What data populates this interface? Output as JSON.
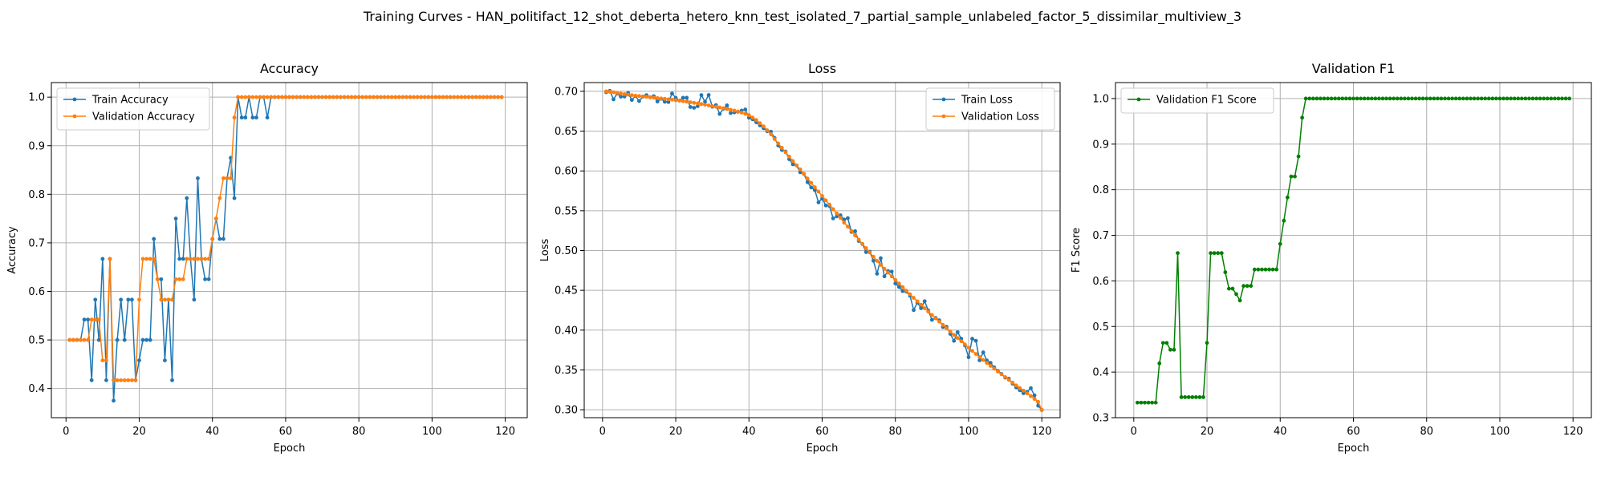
{
  "suptitle": "Training Curves - HAN_politifact_12_shot_deberta_hetero_knn_test_isolated_7_partial_sample_unlabeled_factor_5_dissimilar_multiview_3",
  "colors": {
    "blue": "#1f77b4",
    "orange": "#ff7f0e",
    "green": "#008000",
    "grid": "#b0b0b0"
  },
  "chart_data": [
    {
      "type": "line",
      "title": "Accuracy",
      "xlabel": "Epoch",
      "ylabel": "Accuracy",
      "xlim": [
        -4,
        126
      ],
      "ylim": [
        0.34,
        1.03
      ],
      "xticks": [
        0,
        20,
        40,
        60,
        80,
        100,
        120
      ],
      "yticks": [
        0.4,
        0.5,
        0.6,
        0.7,
        0.8,
        0.9,
        1.0
      ],
      "ytick_format": 1,
      "grid": true,
      "legend": "upper-left",
      "series": [
        {
          "name": "Train Accuracy",
          "color": "#1f77b4",
          "x_start": 1,
          "values": [
            0.5,
            0.5,
            0.5,
            0.5,
            0.542,
            0.542,
            0.417,
            0.583,
            0.5,
            0.667,
            0.417,
            0.667,
            0.375,
            0.5,
            0.583,
            0.5,
            0.583,
            0.583,
            0.417,
            0.458,
            0.5,
            0.5,
            0.5,
            0.708,
            0.625,
            0.625,
            0.458,
            0.583,
            0.417,
            0.75,
            0.667,
            0.667,
            0.792,
            0.667,
            0.583,
            0.833,
            0.667,
            0.625,
            0.625,
            0.708,
            0.75,
            0.708,
            0.708,
            0.833,
            0.875,
            0.792,
            1.0,
            0.958,
            0.958,
            1.0,
            0.958,
            0.958,
            1.0,
            1.0,
            0.958,
            1.0,
            1.0,
            1.0,
            1.0,
            1.0,
            1.0,
            1.0,
            1.0,
            1.0,
            1.0,
            1.0,
            1.0,
            1.0,
            1.0,
            1.0,
            1.0,
            1.0,
            1.0,
            1.0,
            1.0,
            1.0,
            1.0,
            1.0,
            1.0,
            1.0,
            1.0,
            1.0,
            1.0,
            1.0,
            1.0,
            1.0,
            1.0,
            1.0,
            1.0,
            1.0,
            1.0,
            1.0,
            1.0,
            1.0,
            1.0,
            1.0,
            1.0,
            1.0,
            1.0,
            1.0,
            1.0,
            1.0,
            1.0,
            1.0,
            1.0,
            1.0,
            1.0,
            1.0,
            1.0,
            1.0,
            1.0,
            1.0,
            1.0,
            1.0,
            1.0,
            1.0,
            1.0,
            1.0,
            1.0
          ]
        },
        {
          "name": "Validation Accuracy",
          "color": "#ff7f0e",
          "x_start": 1,
          "values": [
            0.5,
            0.5,
            0.5,
            0.5,
            0.5,
            0.5,
            0.542,
            0.542,
            0.542,
            0.458,
            0.458,
            0.667,
            0.417,
            0.417,
            0.417,
            0.417,
            0.417,
            0.417,
            0.417,
            0.583,
            0.667,
            0.667,
            0.667,
            0.667,
            0.625,
            0.583,
            0.583,
            0.583,
            0.583,
            0.625,
            0.625,
            0.625,
            0.667,
            0.667,
            0.667,
            0.667,
            0.667,
            0.667,
            0.667,
            0.708,
            0.75,
            0.792,
            0.833,
            0.833,
            0.833,
            0.958,
            1.0,
            1.0,
            1.0,
            1.0,
            1.0,
            1.0,
            1.0,
            1.0,
            1.0,
            1.0,
            1.0,
            1.0,
            1.0,
            1.0,
            1.0,
            1.0,
            1.0,
            1.0,
            1.0,
            1.0,
            1.0,
            1.0,
            1.0,
            1.0,
            1.0,
            1.0,
            1.0,
            1.0,
            1.0,
            1.0,
            1.0,
            1.0,
            1.0,
            1.0,
            1.0,
            1.0,
            1.0,
            1.0,
            1.0,
            1.0,
            1.0,
            1.0,
            1.0,
            1.0,
            1.0,
            1.0,
            1.0,
            1.0,
            1.0,
            1.0,
            1.0,
            1.0,
            1.0,
            1.0,
            1.0,
            1.0,
            1.0,
            1.0,
            1.0,
            1.0,
            1.0,
            1.0,
            1.0,
            1.0,
            1.0,
            1.0,
            1.0,
            1.0,
            1.0,
            1.0,
            1.0,
            1.0,
            1.0
          ]
        }
      ]
    },
    {
      "type": "line",
      "title": "Loss",
      "xlabel": "Epoch",
      "ylabel": "Loss",
      "xlim": [
        -5,
        125
      ],
      "ylim": [
        0.29,
        0.711
      ],
      "xticks": [
        0,
        20,
        40,
        60,
        80,
        100,
        120
      ],
      "yticks": [
        0.3,
        0.35,
        0.4,
        0.45,
        0.5,
        0.55,
        0.6,
        0.65,
        0.7
      ],
      "ytick_format": 2,
      "grid": true,
      "legend": "upper-right",
      "series": [
        {
          "name": "Train Loss",
          "color": "#1f77b4",
          "x_start": 1,
          "values": [
            0.6989,
            0.7007,
            0.6899,
            0.6972,
            0.6933,
            0.6935,
            0.6981,
            0.6891,
            0.6941,
            0.6878,
            0.6932,
            0.6953,
            0.6925,
            0.6939,
            0.6872,
            0.6907,
            0.6869,
            0.6865,
            0.6972,
            0.6918,
            0.6883,
            0.6919,
            0.6919,
            0.6803,
            0.6793,
            0.6814,
            0.6953,
            0.6869,
            0.6954,
            0.6806,
            0.6827,
            0.6716,
            0.6779,
            0.6824,
            0.6727,
            0.6735,
            0.6743,
            0.6758,
            0.6772,
            0.6669,
            0.6649,
            0.6611,
            0.6573,
            0.6536,
            0.6498,
            0.6493,
            0.6414,
            0.632,
            0.6263,
            0.6244,
            0.6147,
            0.6083,
            0.6069,
            0.5983,
            0.5963,
            0.5858,
            0.5793,
            0.5758,
            0.5605,
            0.5653,
            0.5566,
            0.5559,
            0.5403,
            0.543,
            0.5443,
            0.5389,
            0.5407,
            0.5233,
            0.5243,
            0.512,
            0.5082,
            0.498,
            0.4985,
            0.4871,
            0.4708,
            0.4904,
            0.4676,
            0.4742,
            0.4735,
            0.4586,
            0.4542,
            0.449,
            0.4484,
            0.4432,
            0.4252,
            0.4345,
            0.4275,
            0.4363,
            0.4247,
            0.4129,
            0.4154,
            0.4123,
            0.4039,
            0.4041,
            0.3953,
            0.3865,
            0.3974,
            0.3892,
            0.3808,
            0.366,
            0.3892,
            0.3866,
            0.3621,
            0.372,
            0.3618,
            0.3589,
            0.3532,
            0.3488,
            0.345,
            0.3403,
            0.339,
            0.3328,
            0.328,
            0.3245,
            0.3207,
            0.3225,
            0.3271,
            0.318,
            0.3051,
            0.2996
          ]
        },
        {
          "name": "Validation Loss",
          "color": "#ff7f0e",
          "x_start": 1,
          "values": [
            0.7,
            0.6995,
            0.6988,
            0.698,
            0.6972,
            0.6965,
            0.6958,
            0.6952,
            0.6946,
            0.6941,
            0.6936,
            0.6931,
            0.6926,
            0.6921,
            0.6916,
            0.6911,
            0.6906,
            0.69,
            0.6895,
            0.6889,
            0.6883,
            0.6876,
            0.687,
            0.6863,
            0.6855,
            0.6848,
            0.684,
            0.6832,
            0.6823,
            0.6814,
            0.6806,
            0.6797,
            0.6787,
            0.6778,
            0.6768,
            0.6758,
            0.6746,
            0.6733,
            0.6718,
            0.67,
            0.667,
            0.664,
            0.66,
            0.656,
            0.651,
            0.646,
            0.64,
            0.6345,
            0.629,
            0.6235,
            0.618,
            0.6125,
            0.607,
            0.602,
            0.596,
            0.5905,
            0.585,
            0.5795,
            0.574,
            0.5685,
            0.563,
            0.5577,
            0.552,
            0.5465,
            0.541,
            0.535,
            0.53,
            0.5245,
            0.519,
            0.5137,
            0.508,
            0.503,
            0.4975,
            0.4922,
            0.487,
            0.482,
            0.477,
            0.4722,
            0.4675,
            0.463,
            0.4585,
            0.454,
            0.4495,
            0.445,
            0.4405,
            0.4362,
            0.4318,
            0.4275,
            0.4233,
            0.419,
            0.4148,
            0.4107,
            0.4065,
            0.4023,
            0.3982,
            0.394,
            0.39,
            0.386,
            0.382,
            0.378,
            0.374,
            0.37,
            0.3662,
            0.3625,
            0.3588,
            0.355,
            0.3515,
            0.348,
            0.3445,
            0.341,
            0.3375,
            0.334,
            0.3305,
            0.3272,
            0.324,
            0.3205,
            0.317,
            0.3135,
            0.31,
            0.3
          ]
        }
      ]
    },
    {
      "type": "line",
      "title": "Validation F1",
      "xlabel": "Epoch",
      "ylabel": "F1 Score",
      "xlim": [
        -5,
        125
      ],
      "ylim": [
        0.3,
        1.035
      ],
      "xticks": [
        0,
        20,
        40,
        60,
        80,
        100,
        120
      ],
      "yticks": [
        0.3,
        0.4,
        0.5,
        0.6,
        0.7,
        0.8,
        0.9,
        1.0
      ],
      "ytick_format": 1,
      "grid": true,
      "legend": "upper-left",
      "series": [
        {
          "name": "Validation F1 Score",
          "color": "#008000",
          "x_start": 1,
          "values": [
            0.333,
            0.333,
            0.333,
            0.333,
            0.333,
            0.333,
            0.419,
            0.464,
            0.464,
            0.449,
            0.449,
            0.661,
            0.345,
            0.345,
            0.345,
            0.345,
            0.345,
            0.345,
            0.345,
            0.464,
            0.661,
            0.661,
            0.661,
            0.661,
            0.619,
            0.583,
            0.583,
            0.571,
            0.557,
            0.589,
            0.589,
            0.589,
            0.625,
            0.625,
            0.625,
            0.625,
            0.625,
            0.625,
            0.625,
            0.681,
            0.732,
            0.783,
            0.829,
            0.829,
            0.873,
            0.958,
            1.0,
            1.0,
            1.0,
            1.0,
            1.0,
            1.0,
            1.0,
            1.0,
            1.0,
            1.0,
            1.0,
            1.0,
            1.0,
            1.0,
            1.0,
            1.0,
            1.0,
            1.0,
            1.0,
            1.0,
            1.0,
            1.0,
            1.0,
            1.0,
            1.0,
            1.0,
            1.0,
            1.0,
            1.0,
            1.0,
            1.0,
            1.0,
            1.0,
            1.0,
            1.0,
            1.0,
            1.0,
            1.0,
            1.0,
            1.0,
            1.0,
            1.0,
            1.0,
            1.0,
            1.0,
            1.0,
            1.0,
            1.0,
            1.0,
            1.0,
            1.0,
            1.0,
            1.0,
            1.0,
            1.0,
            1.0,
            1.0,
            1.0,
            1.0,
            1.0,
            1.0,
            1.0,
            1.0,
            1.0,
            1.0,
            1.0,
            1.0,
            1.0,
            1.0,
            1.0,
            1.0,
            1.0,
            1.0
          ]
        }
      ]
    }
  ]
}
